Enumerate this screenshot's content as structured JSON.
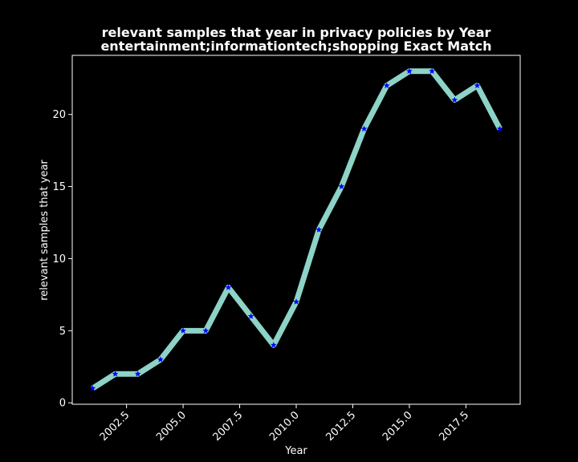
{
  "chart_data": {
    "type": "line",
    "title": "relevant samples that year in privacy policies by Year",
    "subtitle": "entertainment;informationtech;shopping Exact Match",
    "xlabel": "Year",
    "ylabel": "relevant samples that year",
    "xlim": [
      2000.1,
      2019.9
    ],
    "ylim": [
      -0.1,
      24.1
    ],
    "x_ticks": [
      2002.5,
      2005.0,
      2007.5,
      2010.0,
      2012.5,
      2015.0,
      2017.5
    ],
    "x_tick_labels": [
      "2002.5",
      "2005.0",
      "2007.5",
      "2010.0",
      "2012.5",
      "2015.0",
      "2017.5"
    ],
    "y_ticks": [
      0,
      5,
      10,
      15,
      20
    ],
    "y_tick_labels": [
      "0",
      "5",
      "10",
      "15",
      "20"
    ],
    "grid": false,
    "series": [
      {
        "x": [
          2001,
          2002,
          2003,
          2004,
          2005,
          2006,
          2007,
          2008,
          2009,
          2010,
          2011,
          2012,
          2013,
          2014,
          2015,
          2016,
          2017,
          2018,
          2019
        ],
        "values": [
          1,
          2,
          2,
          3,
          5,
          5,
          8,
          6,
          4,
          7,
          12,
          15,
          19,
          22,
          23,
          23,
          21,
          22,
          19
        ],
        "line_color": "#8dd3c7",
        "marker_color": "#0000ff",
        "marker": "star"
      }
    ],
    "colors": {
      "background": "#000000",
      "text": "#ffffff",
      "axes": "#ffffff"
    }
  }
}
